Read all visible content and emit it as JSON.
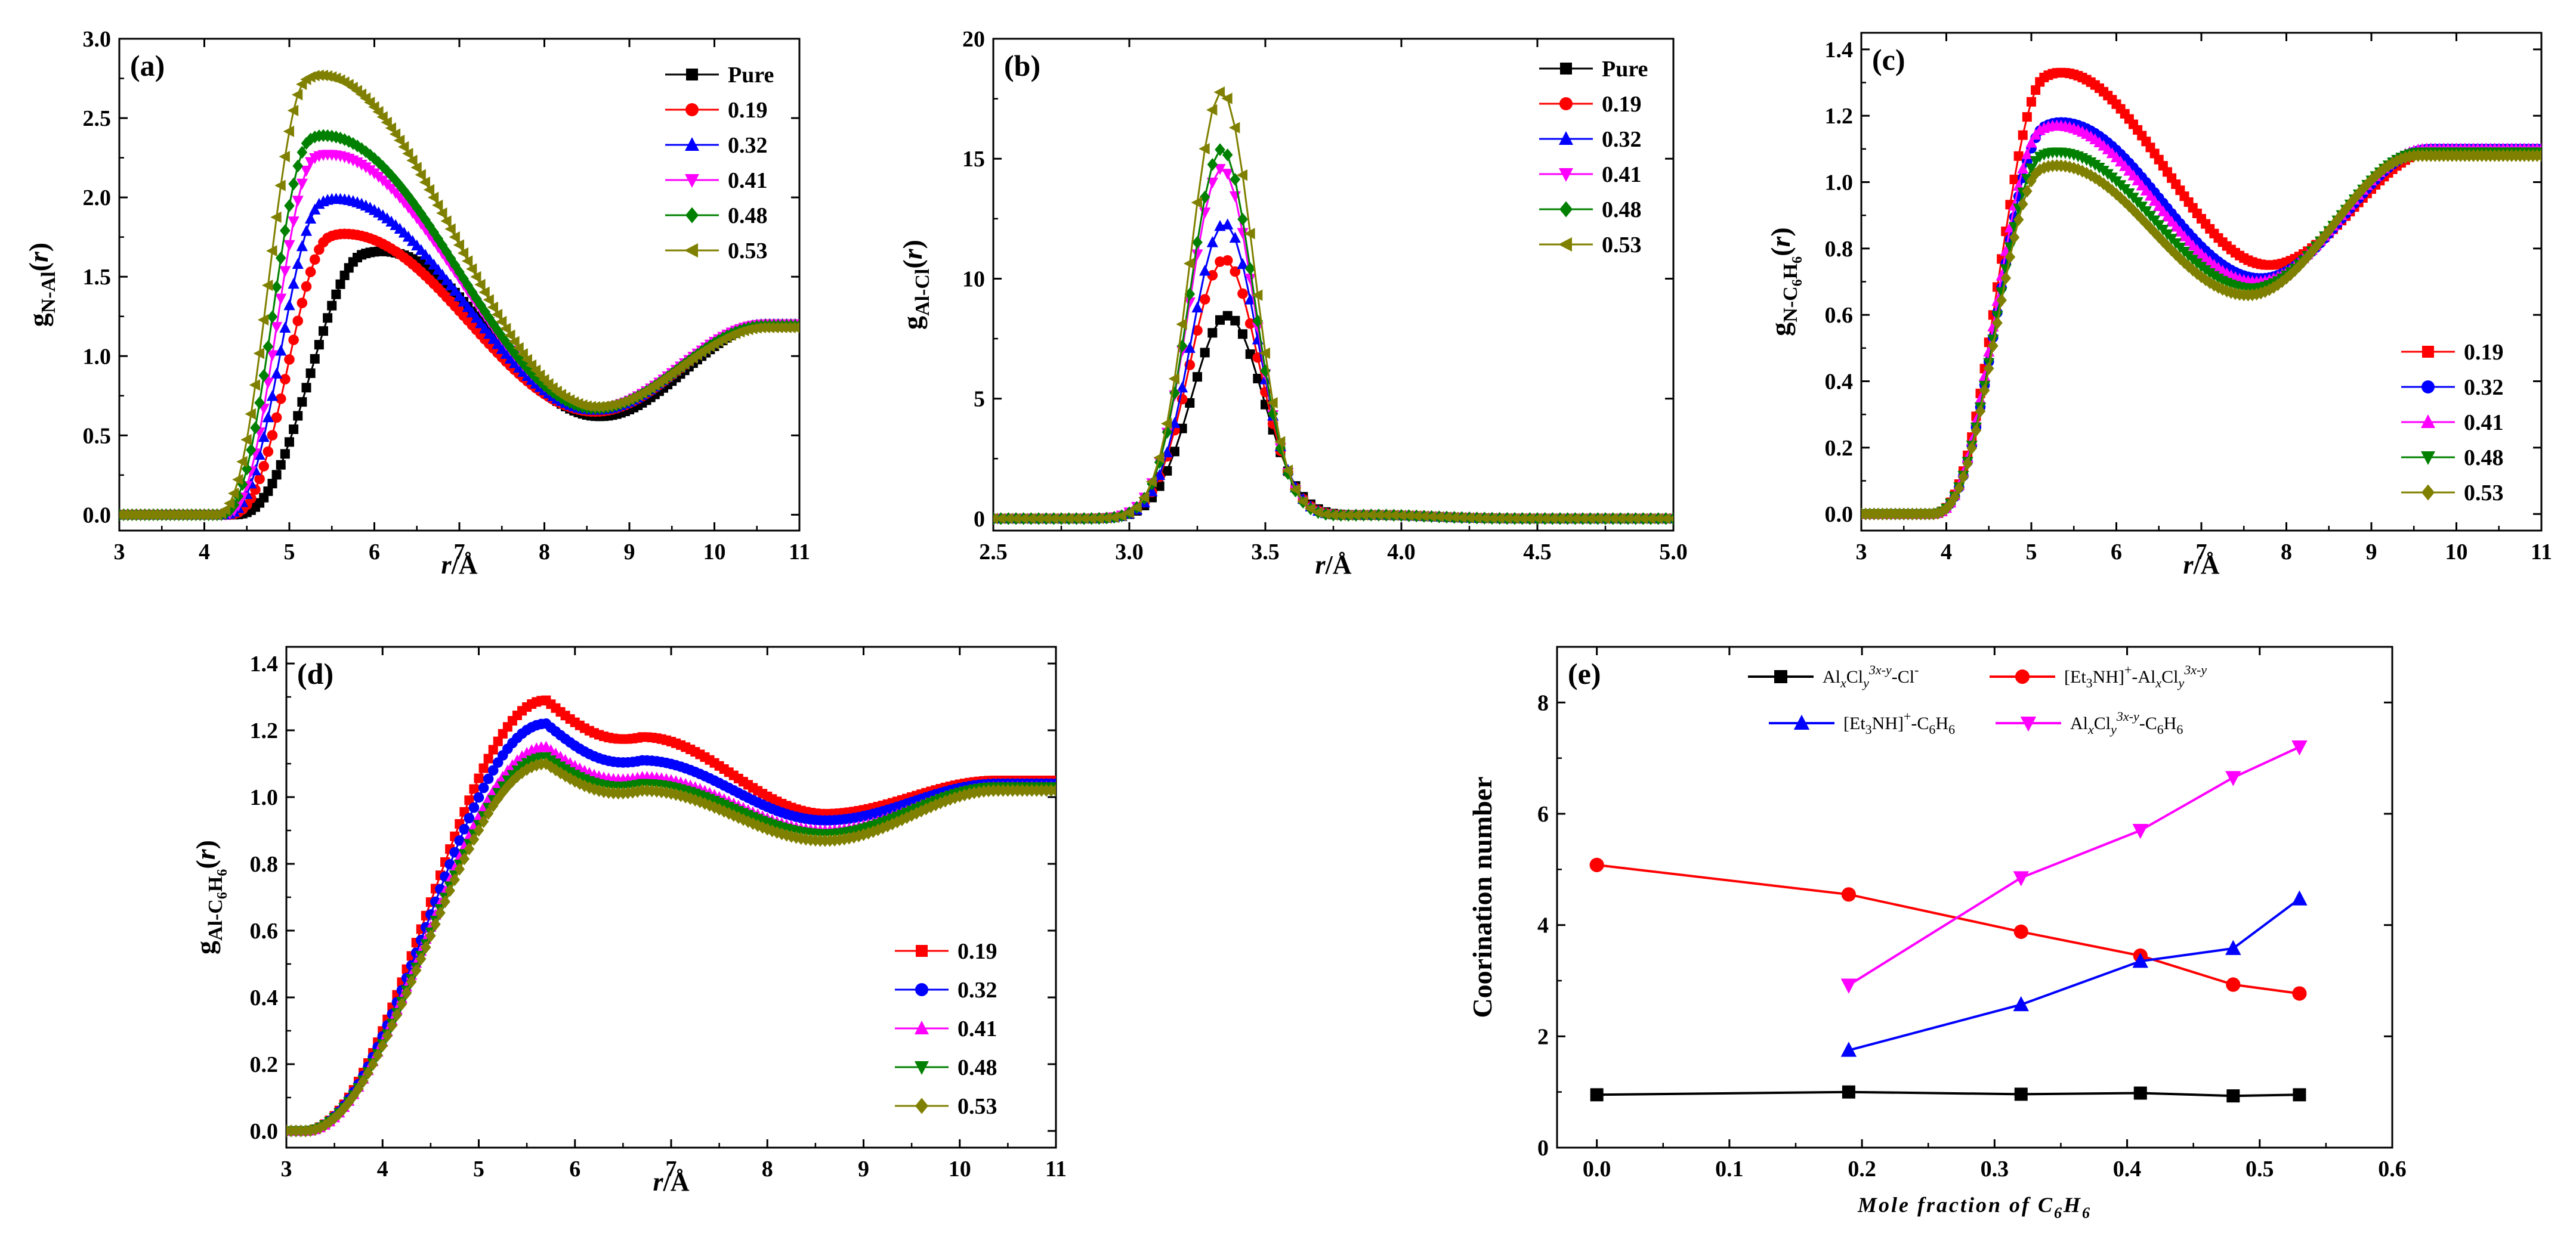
{
  "chart_data": [
    {
      "id": "a",
      "type": "line",
      "panel_label": "(a)",
      "xlabel": "r/Å",
      "ylabel": "gN-Al(r)",
      "xlim": [
        3,
        11
      ],
      "ylim": [
        -0.1,
        3.0
      ],
      "xticks": [
        "3",
        "4",
        "5",
        "6",
        "7",
        "8",
        "9",
        "10",
        "11"
      ],
      "yticks": [
        "0.0",
        "0.5",
        "1.0",
        "1.5",
        "2.0",
        "2.5",
        "3.0"
      ],
      "legend_position": "top-right",
      "curve_model": "rdf",
      "series": [
        {
          "name": "Pure",
          "color": "#000000",
          "marker": "square",
          "onset": 4.3,
          "peak_x": 6.1,
          "peak_y": 1.66,
          "peak_w": 0.9,
          "min_x": 8.65,
          "min_y": 0.62,
          "tail": 1.2
        },
        {
          "name": "0.19",
          "color": "#ff0000",
          "marker": "circle",
          "onset": 4.25,
          "peak_x": 5.65,
          "peak_y": 1.77,
          "peak_w": 0.75,
          "min_x": 8.6,
          "min_y": 0.65,
          "tail": 1.2
        },
        {
          "name": "0.32",
          "color": "#0000ff",
          "marker": "triangle-up",
          "onset": 4.2,
          "peak_x": 5.55,
          "peak_y": 1.99,
          "peak_w": 0.7,
          "min_x": 8.6,
          "min_y": 0.66,
          "tail": 1.2
        },
        {
          "name": "0.41",
          "color": "#ff00ff",
          "marker": "triangle-down",
          "onset": 4.2,
          "peak_x": 5.45,
          "peak_y": 2.27,
          "peak_w": 0.66,
          "min_x": 8.6,
          "min_y": 0.67,
          "tail": 1.2
        },
        {
          "name": "0.48",
          "color": "#008000",
          "marker": "diamond",
          "onset": 4.15,
          "peak_x": 5.4,
          "peak_y": 2.39,
          "peak_w": 0.64,
          "min_x": 8.6,
          "min_y": 0.67,
          "tail": 1.19
        },
        {
          "name": "0.53",
          "color": "#808000",
          "marker": "triangle-left",
          "onset": 4.1,
          "peak_x": 5.35,
          "peak_y": 2.77,
          "peak_w": 0.62,
          "min_x": 8.6,
          "min_y": 0.68,
          "tail": 1.18
        }
      ]
    },
    {
      "id": "b",
      "type": "line",
      "panel_label": "(b)",
      "xlabel": "r/Å",
      "ylabel": "gAl-Cl(r)",
      "xlim": [
        2.5,
        5.0
      ],
      "ylim": [
        -0.5,
        20
      ],
      "xticks": [
        "2.5",
        "3.0",
        "3.5",
        "4.0",
        "4.5",
        "5.0"
      ],
      "yticks": [
        "0",
        "5",
        "10",
        "15",
        "20"
      ],
      "legend_position": "top-right",
      "curve_model": "peak",
      "series": [
        {
          "name": "Pure",
          "color": "#000000",
          "marker": "square",
          "peak_x": 3.36,
          "peak_y": 8.45,
          "sigma": 0.13
        },
        {
          "name": "0.19",
          "color": "#ff0000",
          "marker": "circle",
          "peak_x": 3.35,
          "peak_y": 10.8,
          "sigma": 0.125
        },
        {
          "name": "0.32",
          "color": "#0000ff",
          "marker": "triangle-up",
          "peak_x": 3.35,
          "peak_y": 12.3,
          "sigma": 0.122
        },
        {
          "name": "0.41",
          "color": "#ff00ff",
          "marker": "triangle-down",
          "peak_x": 3.34,
          "peak_y": 14.6,
          "sigma": 0.12
        },
        {
          "name": "0.48",
          "color": "#008000",
          "marker": "diamond",
          "peak_x": 3.34,
          "peak_y": 15.4,
          "sigma": 0.118
        },
        {
          "name": "0.53",
          "color": "#808000",
          "marker": "triangle-left",
          "peak_x": 3.34,
          "peak_y": 17.8,
          "sigma": 0.116
        }
      ]
    },
    {
      "id": "c",
      "type": "line",
      "panel_label": "(c)",
      "xlabel": "r/Å",
      "ylabel": "gN-C6H6(r)",
      "xlim": [
        3,
        11
      ],
      "ylim": [
        -0.05,
        1.45
      ],
      "xticks": [
        "3",
        "4",
        "5",
        "6",
        "7",
        "8",
        "9",
        "10",
        "11"
      ],
      "yticks": [
        "0.0",
        "0.2",
        "0.4",
        "0.6",
        "0.8",
        "1.0",
        "1.2",
        "1.4"
      ],
      "legend_position": "bottom-right",
      "curve_model": "rdf",
      "series": [
        {
          "name": "0.19",
          "color": "#ff0000",
          "marker": "square",
          "onset": 3.8,
          "peak_x": 5.35,
          "peak_y": 1.33,
          "peak_w": 0.85,
          "min_x": 7.8,
          "min_y": 0.75,
          "tail": 1.1
        },
        {
          "name": "0.32",
          "color": "#0000ff",
          "marker": "circle",
          "onset": 3.8,
          "peak_x": 5.35,
          "peak_y": 1.18,
          "peak_w": 0.85,
          "min_x": 7.7,
          "min_y": 0.71,
          "tail": 1.1
        },
        {
          "name": "0.41",
          "color": "#ff00ff",
          "marker": "triangle-up",
          "onset": 3.8,
          "peak_x": 5.3,
          "peak_y": 1.17,
          "peak_w": 0.85,
          "min_x": 7.65,
          "min_y": 0.7,
          "tail": 1.1
        },
        {
          "name": "0.48",
          "color": "#008000",
          "marker": "triangle-down",
          "onset": 3.8,
          "peak_x": 5.3,
          "peak_y": 1.09,
          "peak_w": 0.85,
          "min_x": 7.6,
          "min_y": 0.68,
          "tail": 1.09
        },
        {
          "name": "0.53",
          "color": "#808000",
          "marker": "diamond",
          "onset": 3.8,
          "peak_x": 5.3,
          "peak_y": 1.05,
          "peak_w": 0.85,
          "min_x": 7.55,
          "min_y": 0.66,
          "tail": 1.08
        }
      ]
    },
    {
      "id": "d",
      "type": "line",
      "panel_label": "(d)",
      "xlabel": "r/Å",
      "ylabel": "gAl-C6H6(r)",
      "xlim": [
        3,
        11
      ],
      "ylim": [
        -0.05,
        1.45
      ],
      "xticks": [
        "3",
        "4",
        "5",
        "6",
        "7",
        "8",
        "9",
        "10",
        "11"
      ],
      "yticks": [
        "0.0",
        "0.2",
        "0.4",
        "0.6",
        "0.8",
        "1.0",
        "1.2",
        "1.4"
      ],
      "legend_position": "bottom-right",
      "curve_model": "rdf2",
      "series": [
        {
          "name": "0.19",
          "color": "#ff0000",
          "marker": "square",
          "onset": 3.2,
          "peak_x": 5.7,
          "peak_y": 1.29,
          "shoulder_y": 1.18,
          "min_x": 8.6,
          "min_y": 0.95,
          "tail": 1.05
        },
        {
          "name": "0.32",
          "color": "#0000ff",
          "marker": "circle",
          "onset": 3.2,
          "peak_x": 5.7,
          "peak_y": 1.22,
          "shoulder_y": 1.11,
          "min_x": 8.6,
          "min_y": 0.93,
          "tail": 1.04
        },
        {
          "name": "0.41",
          "color": "#ff00ff",
          "marker": "triangle-up",
          "onset": 3.2,
          "peak_x": 5.7,
          "peak_y": 1.15,
          "shoulder_y": 1.06,
          "min_x": 8.6,
          "min_y": 0.9,
          "tail": 1.03
        },
        {
          "name": "0.48",
          "color": "#008000",
          "marker": "triangle-down",
          "onset": 3.2,
          "peak_x": 5.7,
          "peak_y": 1.12,
          "shoulder_y": 1.04,
          "min_x": 8.6,
          "min_y": 0.89,
          "tail": 1.03
        },
        {
          "name": "0.53",
          "color": "#808000",
          "marker": "diamond",
          "onset": 3.2,
          "peak_x": 5.7,
          "peak_y": 1.1,
          "shoulder_y": 1.02,
          "min_x": 8.6,
          "min_y": 0.87,
          "tail": 1.02
        }
      ]
    },
    {
      "id": "e",
      "type": "line",
      "panel_label": "(e)",
      "xlabel": "Mole fraction of C6H6",
      "ylabel": "Coorination number",
      "xlim": [
        -0.03,
        0.6
      ],
      "ylim": [
        0,
        9
      ],
      "xticks": [
        "0.0",
        "0.1",
        "0.2",
        "0.3",
        "0.4",
        "0.5",
        "0.6"
      ],
      "yticks": [
        "0",
        "2",
        "4",
        "6",
        "8"
      ],
      "legend_position": "top",
      "series": [
        {
          "name": "AlxCly3x-y-Cl-",
          "color": "#000000",
          "marker": "square",
          "x": [
            0.0,
            0.19,
            0.32,
            0.41,
            0.48,
            0.53
          ],
          "values": [
            0.95,
            1.0,
            0.96,
            0.98,
            0.93,
            0.95
          ]
        },
        {
          "name": "[Et3NH]+-AlxCly3x-y",
          "color": "#ff0000",
          "marker": "circle",
          "x": [
            0.0,
            0.19,
            0.32,
            0.41,
            0.48,
            0.53
          ],
          "values": [
            5.08,
            4.55,
            3.88,
            3.45,
            2.93,
            2.77
          ]
        },
        {
          "name": "[Et3NH]+-C6H6",
          "color": "#0000ff",
          "marker": "triangle-up",
          "x": [
            0.19,
            0.32,
            0.41,
            0.48,
            0.53
          ],
          "values": [
            1.75,
            2.57,
            3.35,
            3.58,
            4.47
          ]
        },
        {
          "name": "AlxCly3x-y-C6H6",
          "color": "#ff00ff",
          "marker": "triangle-down",
          "x": [
            0.19,
            0.32,
            0.41,
            0.48,
            0.53
          ],
          "values": [
            2.92,
            4.85,
            5.7,
            6.65,
            7.2
          ]
        }
      ]
    }
  ]
}
